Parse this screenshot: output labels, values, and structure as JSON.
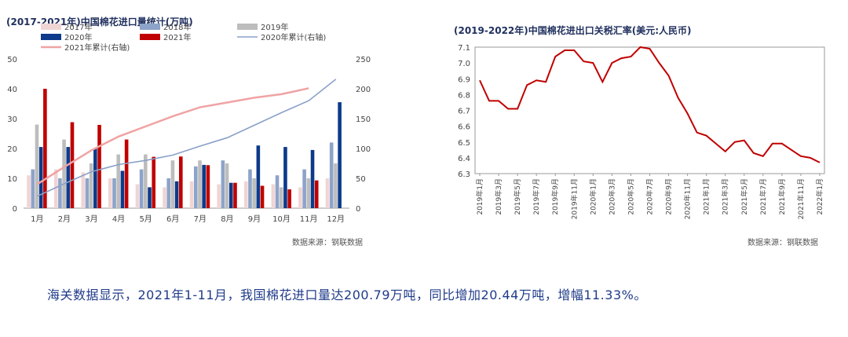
{
  "caption": "海关数据显示，2021年1-11月，我国棉花进口量达200.79万吨，同比增加20.44万吨，增幅11.33%。",
  "chart_data": [
    {
      "type": "bar",
      "title": "(2017-2021年)中国棉花进口量统计(万吨)",
      "source": "数据来源：钢联数据",
      "categories": [
        "1月",
        "2月",
        "3月",
        "4月",
        "5月",
        "6月",
        "7月",
        "8月",
        "9月",
        "10月",
        "11月",
        "12月"
      ],
      "ylim": [
        0,
        50
      ],
      "yticks": [
        0,
        10,
        20,
        30,
        40,
        50
      ],
      "y2lim": [
        0,
        250
      ],
      "y2ticks": [
        0,
        50,
        100,
        150,
        200,
        250
      ],
      "series": [
        {
          "name": "2017年",
          "color": "#f0d5d5",
          "values": [
            11,
            13,
            12,
            10,
            8,
            7,
            9,
            8,
            9,
            8,
            7,
            10
          ]
        },
        {
          "name": "2018年",
          "color": "#8da3c9",
          "values": [
            13,
            10,
            10,
            10,
            13,
            10,
            14,
            16,
            13,
            11,
            13,
            22
          ]
        },
        {
          "name": "2019年",
          "color": "#bdbdbd",
          "values": [
            28,
            23,
            15,
            18,
            18,
            16,
            16,
            15,
            10,
            7,
            10,
            15
          ]
        },
        {
          "name": "2020年",
          "color": "#0d3a8a",
          "values": [
            20.5,
            20.5,
            20,
            12.5,
            7,
            9,
            14.5,
            8.5,
            21,
            20.5,
            19.5,
            35.5
          ]
        },
        {
          "name": "2021年",
          "color": "#c00000",
          "values": [
            40,
            28.8,
            27.9,
            23,
            17.2,
            17.3,
            14.4,
            8.5,
            7.5,
            6.3,
            9.3,
            null
          ]
        }
      ],
      "lines": [
        {
          "name": "2021年累计(右轴)",
          "axis": "right",
          "color": "#f0a3a3",
          "values": [
            40,
            69,
            97,
            120,
            137,
            154,
            169,
            177,
            185,
            191,
            200.79,
            null
          ]
        },
        {
          "name": "2020年累计(右轴)",
          "axis": "right",
          "color": "#8aa0c8",
          "values": [
            20,
            41,
            61,
            73,
            80,
            89,
            104,
            118,
            139,
            160,
            180,
            216
          ]
        }
      ]
    },
    {
      "type": "line",
      "title": "(2019-2022年)中国棉花进出口关税汇率(美元:人民币)",
      "source": "数据来源：钢联数据",
      "ylim": [
        6.3,
        7.1
      ],
      "yticks": [
        "6.3",
        "6.4",
        "6.5",
        "6.6",
        "6.7",
        "6.8",
        "6.9",
        "7.0",
        "7.1"
      ],
      "x": [
        "2019年1月",
        "2019年2月",
        "2019年3月",
        "2019年4月",
        "2019年5月",
        "2019年6月",
        "2019年7月",
        "2019年8月",
        "2019年9月",
        "2019年10月",
        "2019年11月",
        "2019年12月",
        "2020年1月",
        "2020年2月",
        "2020年3月",
        "2020年4月",
        "2020年5月",
        "2020年6月",
        "2020年7月",
        "2020年8月",
        "2020年9月",
        "2020年10月",
        "2020年11月",
        "2020年12月",
        "2021年1月",
        "2021年2月",
        "2021年3月",
        "2021年4月",
        "2021年5月",
        "2021年6月",
        "2021年7月",
        "2021年8月",
        "2021年9月",
        "2021年10月",
        "2021年11月",
        "2021年12月",
        "2022年1月"
      ],
      "xtick_labels": [
        "2019年1月",
        "2019年3月",
        "2019年5月",
        "2019年7月",
        "2019年9月",
        "2019年11月",
        "2020年1月",
        "2020年3月",
        "2020年5月",
        "2020年7月",
        "2020年9月",
        "2020年11月",
        "2021年1月",
        "2021年3月",
        "2021年5月",
        "2021年7月",
        "2021年9月",
        "2021年11月",
        "2022年1月"
      ],
      "series": [
        {
          "color": "#c00000",
          "values": [
            6.89,
            6.76,
            6.76,
            6.71,
            6.71,
            6.86,
            6.89,
            6.88,
            7.04,
            7.08,
            7.08,
            7.01,
            7.0,
            6.88,
            7.0,
            7.03,
            7.04,
            7.1,
            7.09,
            7.0,
            6.92,
            6.78,
            6.68,
            6.56,
            6.54,
            6.49,
            6.44,
            6.5,
            6.51,
            6.43,
            6.41,
            6.49,
            6.49,
            6.45,
            6.41,
            6.4,
            6.37
          ]
        }
      ]
    }
  ]
}
